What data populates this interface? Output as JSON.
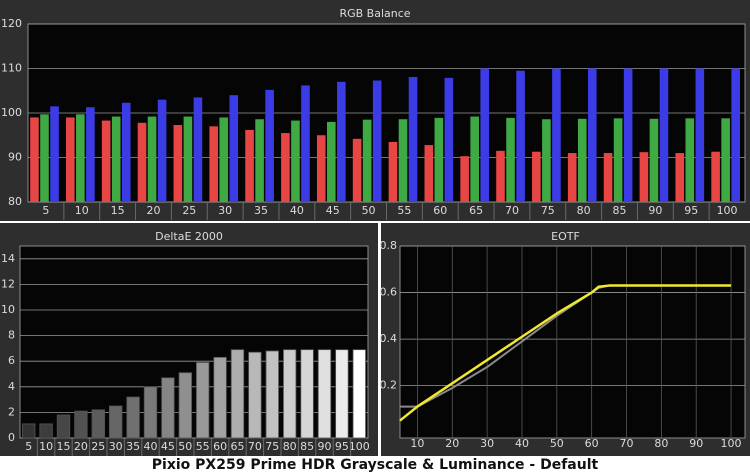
{
  "title": "Pixio PX259 Prime HDR Grayscale & Luminance - Default",
  "chart_data": [
    {
      "type": "bar",
      "title": "RGB Balance",
      "categories": [
        5,
        10,
        15,
        20,
        25,
        30,
        35,
        40,
        45,
        50,
        55,
        60,
        65,
        70,
        75,
        80,
        85,
        90,
        95,
        100
      ],
      "series": [
        {
          "color": "#e84545",
          "values": [
            99,
            99,
            98.3,
            97.8,
            97.3,
            97,
            96.2,
            95.5,
            95,
            94.2,
            93.5,
            92.8,
            90.3,
            91.5,
            91.3,
            91,
            91,
            91.2,
            91,
            91.3
          ]
        },
        {
          "color": "#3faa44",
          "values": [
            99.7,
            99.7,
            99.2,
            99.2,
            99.2,
            99,
            98.6,
            98.3,
            98,
            98.5,
            98.6,
            98.9,
            99.2,
            98.9,
            98.6,
            98.7,
            98.8,
            98.7,
            98.8,
            98.8
          ]
        },
        {
          "color": "#3c3ce6",
          "values": [
            101.5,
            101.3,
            102.3,
            103,
            103.5,
            104,
            105.2,
            106.2,
            107,
            107.3,
            108.1,
            107.9,
            110,
            109.5,
            110,
            110,
            110,
            110,
            110,
            110
          ]
        }
      ],
      "ylim": [
        80,
        120
      ],
      "yticks": [
        80,
        90,
        100,
        110,
        120
      ],
      "grid": true
    },
    {
      "type": "bar",
      "title": "DeltaE 2000",
      "categories": [
        5,
        10,
        15,
        20,
        25,
        30,
        35,
        40,
        45,
        50,
        55,
        60,
        65,
        70,
        75,
        80,
        85,
        90,
        95,
        100
      ],
      "values": [
        1.1,
        1.1,
        1.8,
        2.1,
        2.2,
        2.5,
        3.2,
        4.0,
        4.7,
        5.1,
        5.9,
        6.3,
        6.9,
        6.7,
        6.8,
        6.9,
        6.9,
        6.9,
        6.9,
        6.9
      ],
      "colors": [
        "#333333",
        "#3d3d3d",
        "#474747",
        "#525252",
        "#5c5c5c",
        "#666666",
        "#707070",
        "#7a7a7a",
        "#858585",
        "#8f8f8f",
        "#999999",
        "#a3a3a3",
        "#adadad",
        "#b8b8b8",
        "#c2c2c2",
        "#cccccc",
        "#d6d6d6",
        "#e0e0e0",
        "#ebebeb",
        "#ffffff"
      ],
      "ylim": [
        0,
        15
      ],
      "yticks": [
        0,
        2,
        4,
        6,
        8,
        10,
        12,
        14
      ],
      "grid": true
    },
    {
      "type": "line",
      "title": "EOTF",
      "x": [
        5,
        10,
        20,
        30,
        40,
        50,
        60,
        62,
        65,
        70,
        80,
        90,
        100
      ],
      "series": [
        {
          "color": "#8a8a8a",
          "values": [
            0.11,
            0.11,
            0.19,
            0.28,
            0.39,
            0.5,
            0.6,
            0.62,
            0.63,
            0.63,
            0.63,
            0.63,
            0.63
          ]
        },
        {
          "color": "#f0e832",
          "values": [
            0.05,
            0.11,
            0.21,
            0.31,
            0.41,
            0.51,
            0.6,
            0.625,
            0.63,
            0.63,
            0.63,
            0.63,
            0.63
          ]
        }
      ],
      "xlim": [
        5,
        104
      ],
      "xticks": [
        10,
        20,
        30,
        40,
        50,
        60,
        70,
        80,
        90,
        100
      ],
      "ylim": [
        -0.025,
        0.8
      ],
      "yticks": [
        0.2,
        0.4,
        0.6,
        0.8
      ],
      "grid": true
    }
  ]
}
